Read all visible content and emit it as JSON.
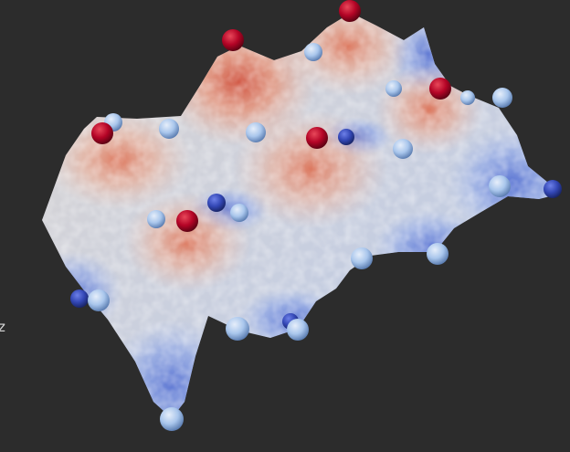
{
  "viewport": {
    "background": "#2c2c2c",
    "axis_label": "z"
  },
  "surface": {
    "colormap": [
      "#3b4cc0",
      "#8db0fe",
      "#dddddd",
      "#f49a7b",
      "#b40426"
    ]
  },
  "critical_points": {
    "maxima_color": "#b40426",
    "saddle_color": "#a9c6ec",
    "minima_color": "#3347b5"
  }
}
